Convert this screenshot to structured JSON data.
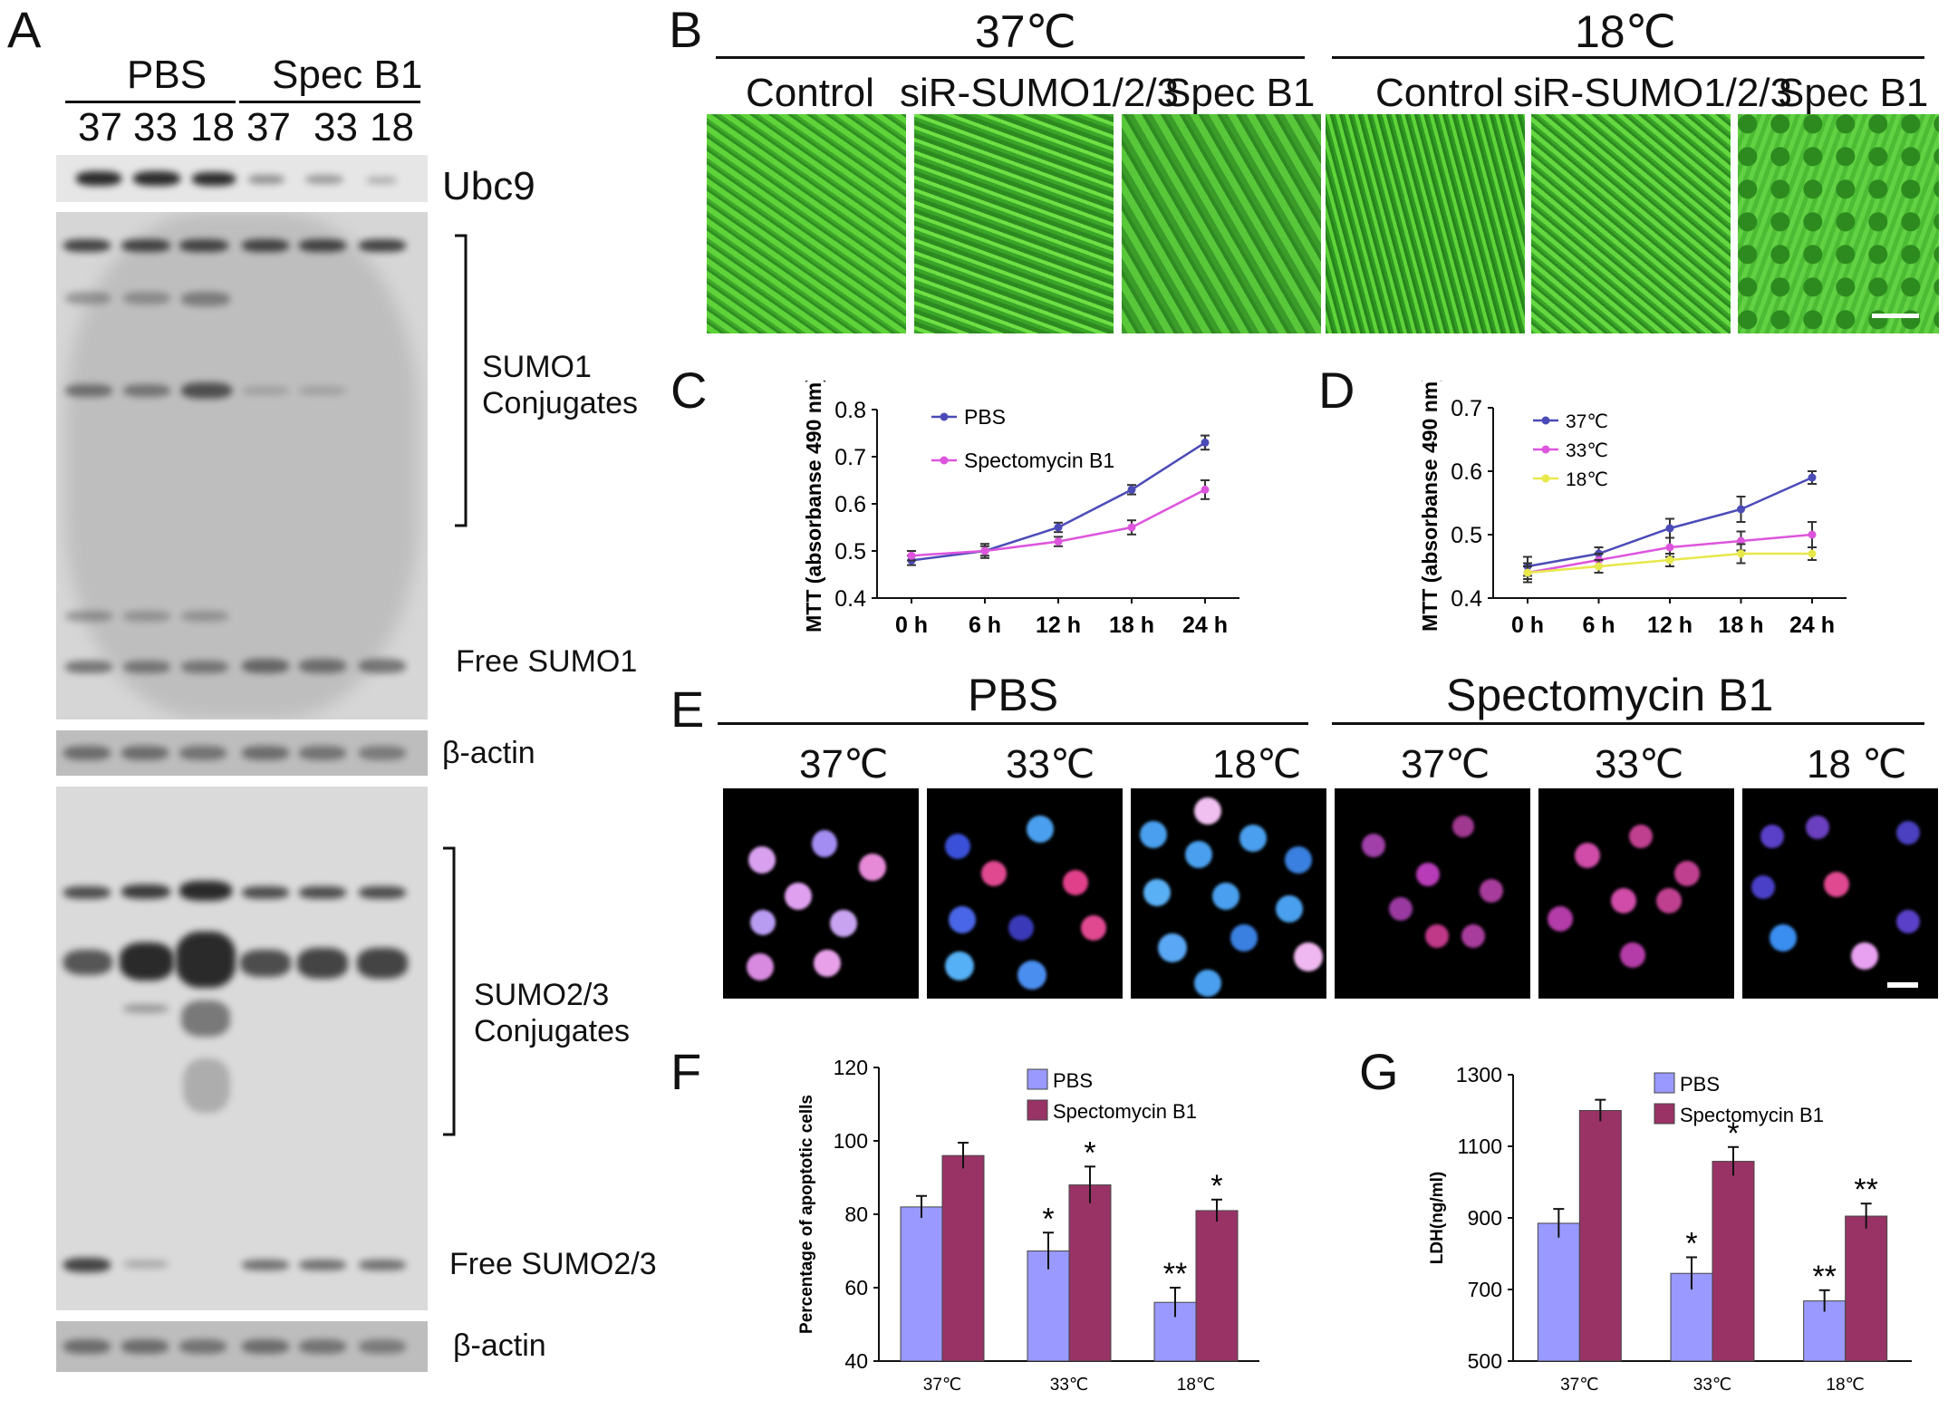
{
  "panelA": {
    "letter": "A",
    "groups": [
      "PBS",
      "Spec B1"
    ],
    "lanes": [
      "37",
      "33",
      "18",
      "37",
      "33",
      "18"
    ],
    "labels": {
      "ubc9": "Ubc9",
      "sumo1_l1": "SUMO1",
      "sumo1_l2": "Conjugates",
      "free_sumo1": "Free SUMO1",
      "actin1": "β-actin",
      "sumo23_l1": "SUMO2/3",
      "sumo23_l2": "Conjugates",
      "free_sumo23": "Free SUMO2/3",
      "actin2": "β-actin"
    }
  },
  "panelB": {
    "letter": "B",
    "temps": [
      "37℃",
      "18℃"
    ],
    "conditions": [
      "Control",
      "siR-SUMO1/2/3",
      "Spec B1",
      "Control",
      "siR-SUMO1/2/3",
      "Spec B1"
    ]
  },
  "panelE": {
    "letter": "E",
    "groups": [
      "PBS",
      "Spectomycin B1"
    ],
    "temps": [
      "37℃",
      "33℃",
      "18℃",
      "37℃",
      "33℃",
      "18 ℃"
    ]
  },
  "colors": {
    "c_blue": "#4b4bb8",
    "c_magenta": "#dd55dd",
    "c_yellow": "#e8e84a",
    "bar_light": "#9999ff",
    "bar_dark": "#993366"
  },
  "chart_data": [
    {
      "panel": "C",
      "type": "line",
      "x": [
        "0 h",
        "6 h",
        "12 h",
        "18 h",
        "24 h"
      ],
      "ylabel": "MTT (absorbanse 490 nm)",
      "ylim": [
        0.4,
        0.8
      ],
      "yticks": [
        "0.4",
        "0.5",
        "0.6",
        "0.7",
        "0.8"
      ],
      "series": [
        {
          "name": "PBS",
          "values": [
            0.48,
            0.5,
            0.55,
            0.63,
            0.73
          ],
          "err": [
            0.01,
            0.01,
            0.01,
            0.01,
            0.015
          ]
        },
        {
          "name": "Spectomycin B1",
          "values": [
            0.49,
            0.5,
            0.52,
            0.55,
            0.63
          ],
          "err": [
            0.01,
            0.015,
            0.01,
            0.015,
            0.02
          ]
        }
      ]
    },
    {
      "panel": "D",
      "type": "line",
      "x": [
        "0 h",
        "6 h",
        "12 h",
        "18 h",
        "24 h"
      ],
      "ylabel": "MTT (absorbanse 490 nm)",
      "ylim": [
        0.4,
        0.7
      ],
      "yticks": [
        "0.4",
        "0.5",
        "0.6",
        "0.7"
      ],
      "series": [
        {
          "name": "37℃",
          "values": [
            0.45,
            0.47,
            0.51,
            0.54,
            0.59
          ],
          "err": [
            0.015,
            0.01,
            0.015,
            0.02,
            0.01
          ]
        },
        {
          "name": "33℃",
          "values": [
            0.44,
            0.46,
            0.48,
            0.49,
            0.5
          ],
          "err": [
            0.015,
            0.01,
            0.015,
            0.015,
            0.02
          ]
        },
        {
          "name": "18℃",
          "values": [
            0.44,
            0.45,
            0.46,
            0.47,
            0.47
          ],
          "err": [
            0.01,
            0.01,
            0.01,
            0.015,
            0.01
          ]
        }
      ]
    },
    {
      "panel": "F",
      "type": "bar",
      "categories": [
        "37℃",
        "33℃",
        "18℃"
      ],
      "ylabel": "Percentage of apoptotic cells",
      "ylim": [
        40,
        120
      ],
      "yticks": [
        "40",
        "60",
        "80",
        "100",
        "120"
      ],
      "series": [
        {
          "name": "PBS",
          "values": [
            82,
            70,
            56
          ],
          "err": [
            3,
            5,
            4
          ],
          "sig": [
            "",
            "*",
            "**"
          ]
        },
        {
          "name": "Spectomycin B1",
          "values": [
            96,
            88,
            81
          ],
          "err": [
            3.5,
            5,
            3
          ],
          "sig": [
            "",
            "*",
            "*"
          ]
        }
      ]
    },
    {
      "panel": "G",
      "type": "bar",
      "categories": [
        "37℃",
        "33℃",
        "18℃"
      ],
      "ylabel": "LDH(ng/ml)",
      "ylim": [
        500,
        1300
      ],
      "yticks": [
        "500",
        "700",
        "900",
        "1100",
        "1300"
      ],
      "series": [
        {
          "name": "PBS",
          "values": [
            885,
            745,
            668
          ],
          "err": [
            40,
            45,
            30
          ],
          "sig": [
            "",
            "*",
            "**"
          ]
        },
        {
          "name": "Spectomycin B1",
          "values": [
            1200,
            1058,
            905
          ],
          "err": [
            30,
            40,
            35
          ],
          "sig": [
            "",
            "*",
            "**"
          ]
        }
      ]
    }
  ]
}
